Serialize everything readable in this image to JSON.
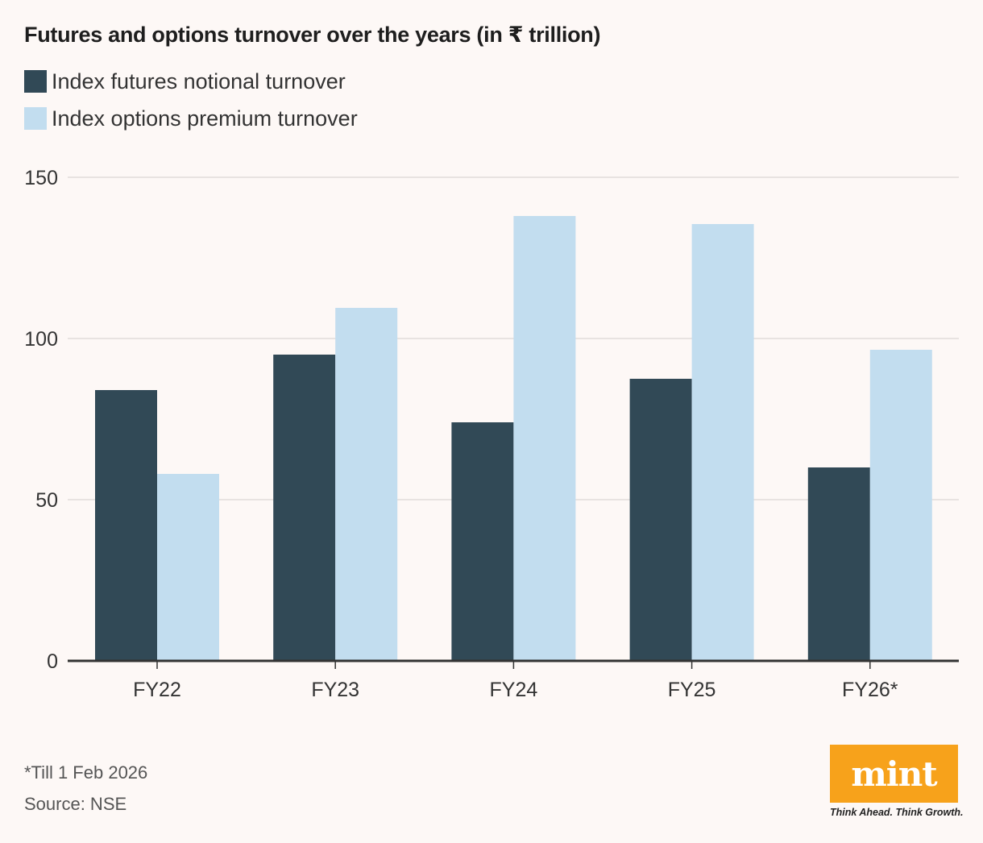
{
  "colors": {
    "background": "#fdf8f6",
    "futures": "#314956",
    "options": "#c2ddef",
    "grid": "#e2dcda",
    "axis": "#333333",
    "brand": "#f7a21b"
  },
  "chart_data": {
    "type": "bar",
    "title": "Futures and options turnover over the years (in ₹ trillion)",
    "categories": [
      "FY22",
      "FY23",
      "FY24",
      "FY25",
      "FY26*"
    ],
    "series": [
      {
        "name": "Index futures notional turnover",
        "values": [
          84,
          95,
          74,
          87.5,
          60
        ]
      },
      {
        "name": "Index options premium turnover",
        "values": [
          58,
          109.5,
          138,
          135.5,
          96.5
        ]
      }
    ],
    "yticks": [
      0,
      50,
      100,
      150
    ],
    "ylim": [
      0,
      150
    ],
    "xlabel": "",
    "ylabel": "",
    "grid": true,
    "legend": "top-left"
  },
  "footnotes": {
    "note": "*Till 1 Feb 2026",
    "source": "Source: NSE"
  },
  "brand": {
    "logo": "mint",
    "tagline": "Think Ahead. Think Growth."
  }
}
